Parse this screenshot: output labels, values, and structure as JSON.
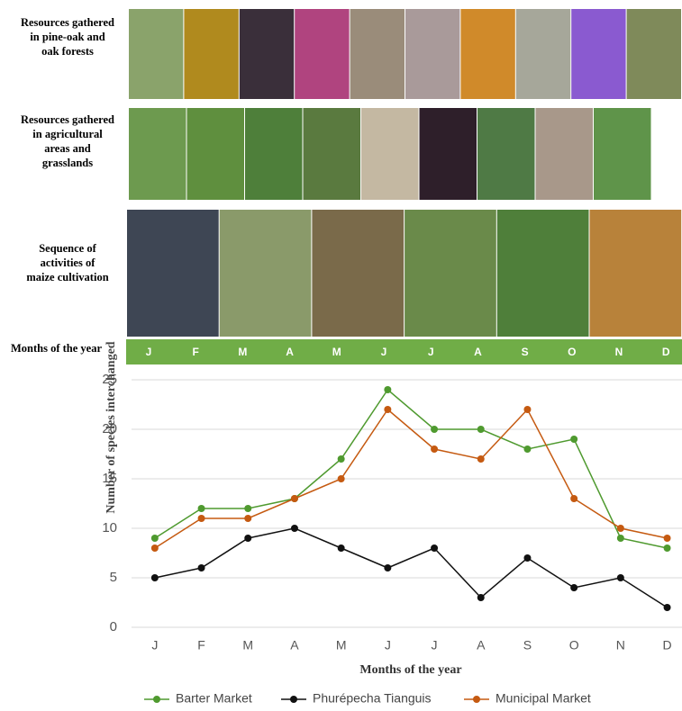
{
  "photo_rows": [
    "Resources gathered in pine-oak and oak forests",
    "Resources gathered in agricultural areas and grasslands",
    "Sequence of activities of maize cultivation"
  ],
  "chart_data": {
    "type": "line",
    "y_label": "Number of species interchanged",
    "x_label": "Months of the year",
    "categories": [
      "J",
      "F",
      "M",
      "A",
      "M",
      "J",
      "J",
      "A",
      "S",
      "O",
      "N",
      "D"
    ],
    "series": [
      {
        "name": "Barter Market",
        "color": "#4f9a2f",
        "values": [
          9,
          12,
          12,
          13,
          17,
          24,
          20,
          20,
          18,
          19,
          9,
          8
        ]
      },
      {
        "name": "Phurépecha Tianguis",
        "color": "#111111",
        "values": [
          5,
          6,
          9,
          10,
          8,
          6,
          8,
          3,
          7,
          4,
          5,
          2
        ]
      },
      {
        "name": "Municipal Market",
        "color": "#c55a11",
        "values": [
          8,
          11,
          11,
          13,
          15,
          22,
          18,
          17,
          22,
          13,
          10,
          9
        ]
      }
    ],
    "ylim": [
      0,
      25
    ],
    "yticks": [
      0,
      5,
      10,
      15,
      20,
      25
    ],
    "grid": true,
    "legend": "bottom"
  }
}
